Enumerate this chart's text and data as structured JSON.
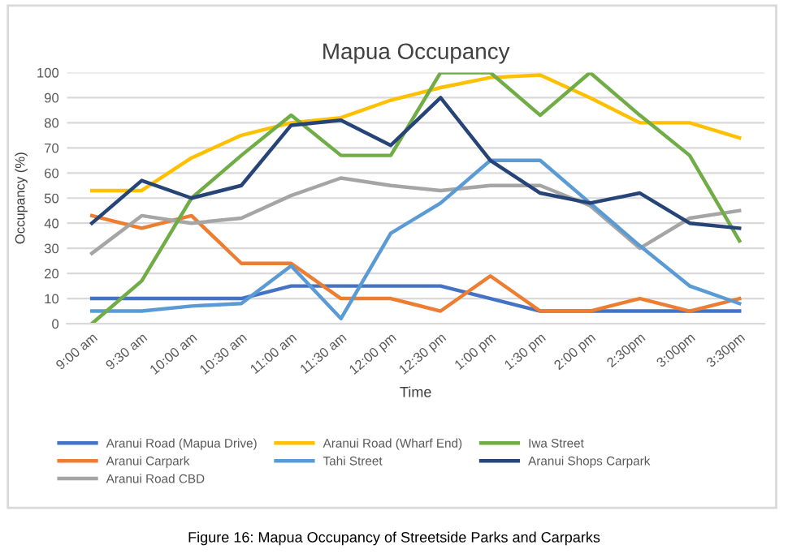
{
  "chart_data": {
    "type": "line",
    "title": "Mapua Occupancy",
    "xlabel": "Time",
    "ylabel": "Occupancy (%)",
    "categories": [
      "9:00 am",
      "9:30 am",
      "10:00 am",
      "10:30 am",
      "11:00 am",
      "11:30 am",
      "12:00 pm",
      "12:30 pm",
      "1:00 pm",
      "1:30 pm",
      "2:00 pm",
      "2:30pm",
      "3:00pm",
      "3:30pm"
    ],
    "series": [
      {
        "name": "Aranui Road (Mapua Drive)",
        "color": "#4472c4",
        "values": [
          10,
          10,
          10,
          10,
          15,
          15,
          15,
          15,
          10,
          5,
          5,
          5,
          5,
          5
        ]
      },
      {
        "name": "Aranui Carpark",
        "color": "#ed7d31",
        "values": [
          43,
          38,
          43,
          24,
          24,
          10,
          10,
          5,
          19,
          5,
          5,
          10,
          5,
          10
        ]
      },
      {
        "name": "Aranui Road CBD",
        "color": "#a5a5a5",
        "values": [
          28,
          43,
          40,
          42,
          51,
          58,
          55,
          53,
          55,
          55,
          47,
          30,
          42,
          45
        ]
      },
      {
        "name": "Aranui Road (Wharf End)",
        "color": "#ffc000",
        "values": [
          53,
          53,
          66,
          75,
          80,
          82,
          89,
          94,
          98,
          99,
          90,
          80,
          80,
          74
        ]
      },
      {
        "name": "Tahi Street",
        "color": "#5b9bd5",
        "values": [
          5,
          5,
          7,
          8,
          23,
          2,
          36,
          48,
          65,
          65,
          48,
          31,
          15,
          8
        ]
      },
      {
        "name": "Iwa Street",
        "color": "#70ad47",
        "values": [
          0,
          17,
          50,
          67,
          83,
          67,
          67,
          100,
          100,
          83,
          100,
          83,
          67,
          33
        ]
      },
      {
        "name": "Aranui Shops Carpark",
        "color": "#264478",
        "values": [
          40,
          57,
          50,
          55,
          79,
          81,
          71,
          90,
          65,
          52,
          48,
          52,
          40,
          38
        ]
      }
    ],
    "ylim": [
      0,
      100
    ],
    "yticks": [
      0,
      10,
      20,
      30,
      40,
      50,
      60,
      70,
      80,
      90,
      100
    ],
    "grid": "y",
    "legend": "bottom",
    "marker": "none",
    "line_style": "solid",
    "annotations": [
      "Figure 16: Mapua Occupancy of Streetside Parks and Carparks"
    ]
  }
}
